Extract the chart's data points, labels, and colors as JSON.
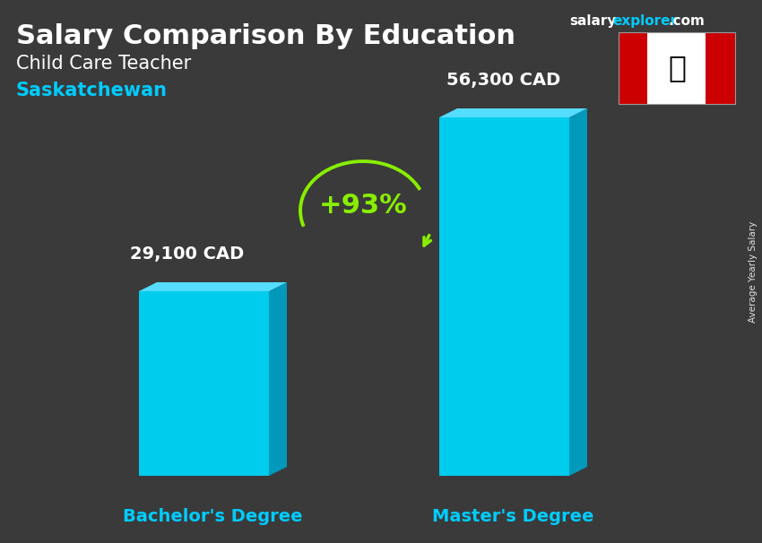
{
  "title_main": "Salary Comparison By Education",
  "title_sub": "Child Care Teacher",
  "title_region": "Saskatchewan",
  "categories": [
    "Bachelor's Degree",
    "Master's Degree"
  ],
  "values": [
    29100,
    56300
  ],
  "value_labels": [
    "29,100 CAD",
    "56,300 CAD"
  ],
  "bar_color_face": "#00CCEE",
  "bar_color_side": "#0099BB",
  "bar_color_top": "#55DDFF",
  "pct_change": "+93%",
  "background_color": "#4a4a4a",
  "title_color": "#FFFFFF",
  "subtitle_color": "#FFFFFF",
  "region_color": "#00CCFF",
  "bar_label_color": "#FFFFFF",
  "xlabel_color": "#00CCFF",
  "website_salary_color": "#FFFFFF",
  "website_explorer_color": "#00CCFF",
  "website_com_color": "#FFFFFF",
  "ylabel_text": "Average Yearly Salary",
  "arrow_color": "#88EE00",
  "pct_color": "#88EE00",
  "flag_red": "#CC0000",
  "flag_white": "#FFFFFF"
}
